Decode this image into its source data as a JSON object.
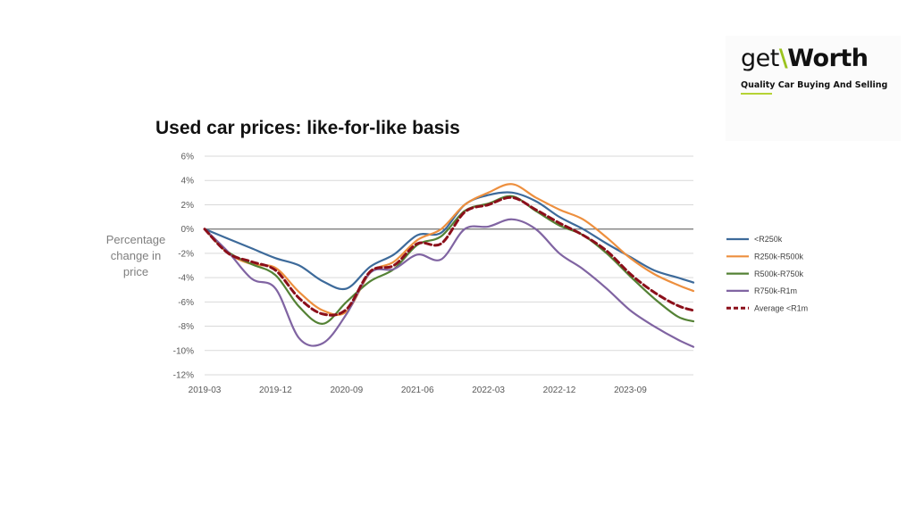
{
  "logo": {
    "word_left": "get",
    "word_slash": "\\",
    "word_right": "Worth",
    "tagline": "Quality Car Buying And Selling"
  },
  "colors": {
    "series_lt250k": "#3d6a9a",
    "series_250_500": "#ed8f3e",
    "series_500_750": "#548235",
    "series_750_1m": "#8064a2",
    "series_avg": "#8b0f1a",
    "gridline": "#d9d9d9",
    "zero_line": "#7f7f7f"
  },
  "chart_data": {
    "type": "line",
    "title": "Used car prices: like-for-like basis",
    "ylabel": "Percentage change in price",
    "xlabel": "",
    "ylim": [
      -12,
      6
    ],
    "yticks": [
      6,
      4,
      2,
      0,
      -2,
      -4,
      -6,
      -8,
      -10,
      -12
    ],
    "ytick_labels": [
      "6%",
      "4%",
      "2%",
      "0%",
      "-2%",
      "-4%",
      "-6%",
      "-8%",
      "-10%",
      "-12%"
    ],
    "xtick_labels": [
      "2019-03",
      "2019-12",
      "2020-09",
      "2021-06",
      "2022-03",
      "2022-12",
      "2023-09"
    ],
    "x_start": "2019-03",
    "x_end": "2024-05",
    "grid": true,
    "legend_position": "right",
    "x": [
      "2019-03",
      "2019-06",
      "2019-09",
      "2019-12",
      "2020-03",
      "2020-06",
      "2020-09",
      "2020-12",
      "2021-03",
      "2021-06",
      "2021-09",
      "2021-12",
      "2022-03",
      "2022-06",
      "2022-09",
      "2022-12",
      "2023-03",
      "2023-06",
      "2023-09",
      "2023-12",
      "2024-03",
      "2024-05"
    ],
    "series": [
      {
        "name": "<R250k",
        "color_key": "series_lt250k",
        "dashed": false,
        "values": [
          0.0,
          -0.8,
          -1.6,
          -2.4,
          -3.0,
          -4.3,
          -4.9,
          -3.1,
          -2.1,
          -0.5,
          -0.3,
          2.0,
          2.8,
          3.0,
          2.3,
          1.0,
          0.0,
          -1.2,
          -2.3,
          -3.4,
          -4.0,
          -4.4
        ]
      },
      {
        "name": "R250k-R500k",
        "color_key": "series_250_500",
        "dashed": false,
        "values": [
          0.0,
          -2.0,
          -2.9,
          -3.2,
          -5.2,
          -6.7,
          -6.8,
          -3.6,
          -2.7,
          -0.9,
          0.0,
          2.0,
          3.0,
          3.7,
          2.6,
          1.6,
          0.8,
          -0.7,
          -2.4,
          -3.7,
          -4.6,
          -5.1
        ]
      },
      {
        "name": "R500k-R750k",
        "color_key": "series_500_750",
        "dashed": false,
        "values": [
          0.0,
          -1.9,
          -2.9,
          -3.8,
          -6.4,
          -7.8,
          -6.0,
          -4.3,
          -3.3,
          -1.3,
          -0.6,
          1.5,
          2.1,
          2.7,
          1.5,
          0.3,
          -0.5,
          -2.0,
          -3.9,
          -5.7,
          -7.2,
          -7.6
        ]
      },
      {
        "name": "R750k-R1m",
        "color_key": "series_750_1m",
        "dashed": false,
        "values": [
          0.0,
          -1.9,
          -4.1,
          -4.9,
          -9.0,
          -9.4,
          -7.0,
          -3.6,
          -3.3,
          -2.1,
          -2.5,
          0.0,
          0.2,
          0.8,
          0.0,
          -2.0,
          -3.3,
          -4.9,
          -6.7,
          -8.0,
          -9.1,
          -9.7
        ]
      },
      {
        "name": "Average <R1m",
        "color_key": "series_avg",
        "dashed": true,
        "values": [
          0.0,
          -2.0,
          -2.7,
          -3.4,
          -5.7,
          -7.0,
          -6.6,
          -3.5,
          -3.0,
          -1.2,
          -1.2,
          1.4,
          2.0,
          2.6,
          1.6,
          0.5,
          -0.5,
          -1.8,
          -3.7,
          -5.2,
          -6.3,
          -6.7
        ]
      }
    ]
  }
}
